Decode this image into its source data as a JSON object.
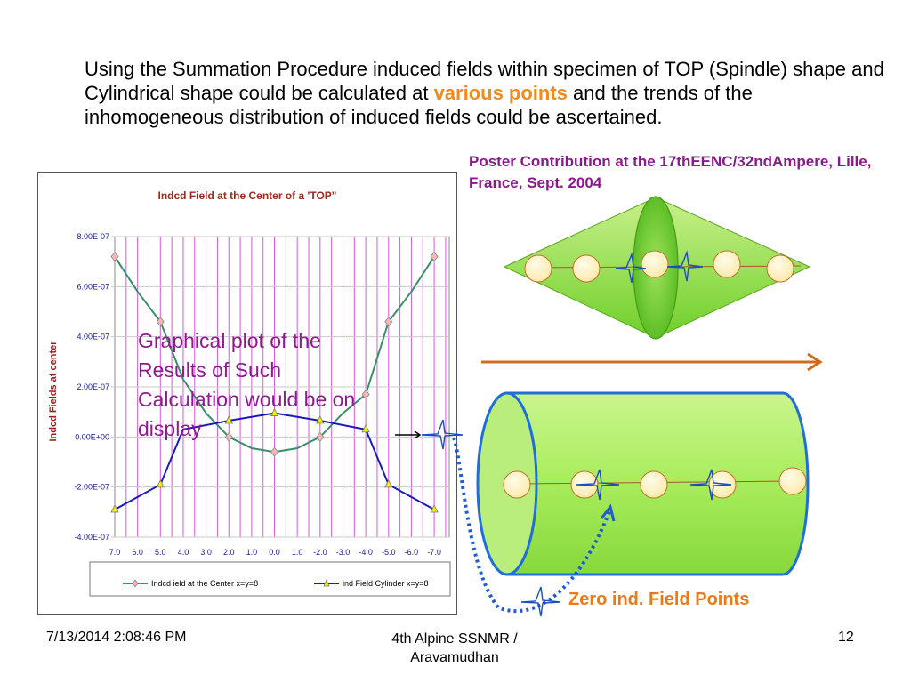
{
  "slide": {
    "intro_part1": "Using the Summation Procedure induced fields within specimen of TOP (Spindle) shape and Cylindrical shape could be calculated at ",
    "intro_highlight": "various points",
    "intro_part2": " and the trends of the inhomogeneous distribution of induced fields could be ascertained.",
    "poster_contribution": "Poster Contribution at the 17thEENC/32ndAmpere, Lille, France, Sept. 2004",
    "overlay_text": "Graphical plot of the Results of Such Calculation would be on display",
    "zero_label": "Zero ind. Field Points",
    "footer": {
      "date": "7/13/2014 2:08:46 PM",
      "center": "4th Alpine SSNMR / Aravamudhan",
      "page": "12"
    }
  },
  "colors": {
    "accent_orange": "#f28a1e",
    "purple": "#8e1b8e",
    "green_shape": "#8fe04a",
    "cylinder_edge": "#1e6fd9"
  },
  "chart_data": {
    "type": "line",
    "title": "Indcd Field at the Center of a 'TOP\"",
    "ylabel": "Indcd Fields at center",
    "xlabel": "",
    "categories": [
      "7.0",
      "6.0",
      "5.0",
      "4.0",
      "3.0",
      "2.0",
      "1.0",
      "0.0",
      "1.0",
      "-2.0",
      "-3.0",
      "-4.0",
      "-5.0",
      "-6.0",
      "-7.0"
    ],
    "y_ticks": [
      "8.00E-07",
      "6.00E-07",
      "4.00E-07",
      "2.00E-07",
      "0.00E+00",
      "-2.00E-07",
      "-4.00E-07"
    ],
    "ylim": [
      -4e-07,
      8e-07
    ],
    "grid": true,
    "legend_position": "bottom",
    "series": [
      {
        "name": "Indcd ield at the Center x=y=8",
        "color": "#3a8f6a",
        "marker": "diamond",
        "marker_color": "#f4b6b6",
        "points": [
          [
            0,
            7.2e-07
          ],
          [
            2,
            4.6e-07
          ],
          [
            5,
            0.0
          ],
          [
            7,
            -6e-08
          ],
          [
            9,
            0.0
          ],
          [
            11,
            1.7e-07
          ],
          [
            12,
            4.6e-07
          ],
          [
            14,
            7.2e-07
          ]
        ],
        "curve": [
          [
            0,
            7.2e-07
          ],
          [
            1,
            5.8e-07
          ],
          [
            2,
            4.6e-07
          ],
          [
            3,
            2.3e-07
          ],
          [
            4,
            9.5e-08
          ],
          [
            5,
            0.0
          ],
          [
            6,
            -4.5e-08
          ],
          [
            7,
            -6e-08
          ],
          [
            8,
            -4.5e-08
          ],
          [
            9,
            0.0
          ],
          [
            10,
            9.5e-08
          ],
          [
            11,
            1.7e-07
          ],
          [
            12,
            4.6e-07
          ],
          [
            13,
            5.8e-07
          ],
          [
            14,
            7.2e-07
          ]
        ]
      },
      {
        "name": "ind Field Cylinder x=y=8",
        "color": "#1a1ab8",
        "marker": "triangle",
        "marker_color": "#f0f000",
        "points": [
          [
            0,
            -2.9e-07
          ],
          [
            2,
            -1.9e-07
          ],
          [
            5,
            6.5e-08
          ],
          [
            7,
            9.5e-08
          ],
          [
            9,
            6.5e-08
          ],
          [
            11,
            3e-08
          ],
          [
            12,
            -1.9e-07
          ],
          [
            14,
            -2.9e-07
          ]
        ],
        "curve": [
          [
            0,
            -2.9e-07
          ],
          [
            2,
            -1.9e-07
          ],
          [
            3,
            3e-08
          ],
          [
            5,
            6.5e-08
          ],
          [
            7,
            9.5e-08
          ],
          [
            9,
            6.5e-08
          ],
          [
            11,
            3e-08
          ],
          [
            12,
            -1.9e-07
          ],
          [
            14,
            -2.9e-07
          ]
        ]
      }
    ]
  }
}
